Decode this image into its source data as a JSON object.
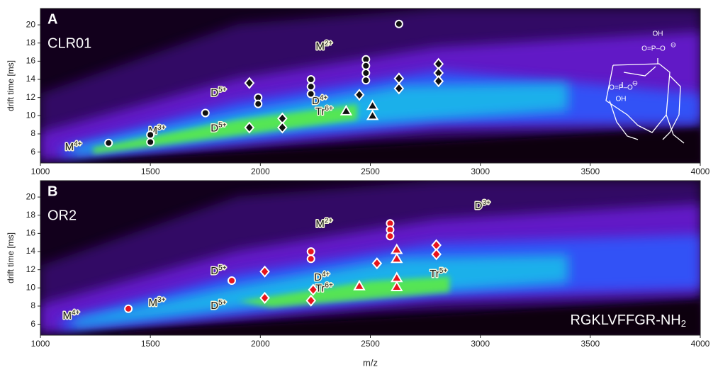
{
  "chart_data": [
    {
      "type": "scatter",
      "panel": "A",
      "title": "CLR01",
      "xlabel": "m/z",
      "ylabel": "drift time [ms]",
      "xlim": [
        1000,
        4000
      ],
      "ylim": [
        4.8,
        21.8
      ],
      "xticks": [
        1000,
        1500,
        2000,
        2500,
        3000,
        3500,
        4000
      ],
      "yticks": [
        6,
        8,
        10,
        12,
        14,
        16,
        18,
        20
      ],
      "marker_fill": "#111111",
      "marker_edge": "#ffffff",
      "series": [
        {
          "marker": "circle",
          "x": [
            1310,
            1500,
            1500,
            1750,
            1990,
            1990,
            2230,
            2230,
            2230,
            2480,
            2480,
            2480,
            2480,
            2630
          ],
          "values": [
            7.0,
            7.9,
            7.1,
            10.3,
            12.0,
            11.3,
            14.0,
            13.2,
            12.4,
            16.2,
            15.5,
            14.7,
            13.9,
            20.1
          ]
        },
        {
          "marker": "diamond",
          "x": [
            1950,
            1950,
            2100,
            2100,
            2450,
            2630,
            2630,
            2810,
            2810,
            2810
          ],
          "values": [
            13.6,
            8.7,
            9.7,
            8.7,
            12.3,
            14.1,
            13.0,
            15.7,
            14.7,
            13.8
          ]
        },
        {
          "marker": "triangle",
          "x": [
            2390,
            2510,
            2510
          ],
          "values": [
            10.5,
            11.1,
            10.0
          ]
        }
      ],
      "annotations": [
        {
          "text": "M",
          "sup": "4+",
          "x": 1150,
          "y": 6.5
        },
        {
          "text": "M",
          "sup": "3+",
          "x": 1530,
          "y": 8.3
        },
        {
          "text": "D",
          "sup": "5+",
          "x": 1810,
          "y": 12.5
        },
        {
          "text": "D",
          "sup": "5+",
          "x": 1810,
          "y": 8.6
        },
        {
          "text": "D",
          "sup": "4+",
          "x": 2270,
          "y": 11.6
        },
        {
          "text": "Tr",
          "sup": "6+",
          "x": 2290,
          "y": 10.4
        },
        {
          "text": "M",
          "sup": "2+",
          "x": 2290,
          "y": 17.6
        }
      ],
      "structure_labels": [
        "OH",
        "O=P–O",
        "⊖",
        "O=P–O",
        "⊖",
        "OH"
      ]
    },
    {
      "type": "scatter",
      "panel": "B",
      "title": "OR2",
      "footer": "RGKLVFFGR-NH",
      "footer_sub": "2",
      "xlabel": "m/z",
      "ylabel": "drift time [ms]",
      "xlim": [
        1000,
        4000
      ],
      "ylim": [
        4.8,
        21.8
      ],
      "xticks": [
        1000,
        1500,
        2000,
        2500,
        3000,
        3500,
        4000
      ],
      "yticks": [
        6,
        8,
        10,
        12,
        14,
        16,
        18,
        20
      ],
      "marker_fill": "#e8141c",
      "marker_edge": "#ffffff",
      "series": [
        {
          "marker": "circle",
          "x": [
            1400,
            1870,
            2230,
            2230,
            2590,
            2590,
            2590
          ],
          "values": [
            7.7,
            10.8,
            14.0,
            13.2,
            17.1,
            16.4,
            15.7
          ]
        },
        {
          "marker": "diamond",
          "x": [
            2020,
            2020,
            2240,
            2230,
            2530,
            2800,
            2800
          ],
          "values": [
            11.8,
            8.9,
            9.8,
            8.6,
            12.7,
            14.7,
            13.7
          ]
        },
        {
          "marker": "triangle",
          "x": [
            2450,
            2620,
            2620,
            2620,
            2620
          ],
          "values": [
            10.2,
            14.2,
            13.2,
            11.1,
            10.1
          ]
        }
      ],
      "annotations": [
        {
          "text": "M",
          "sup": "4+",
          "x": 1140,
          "y": 6.9
        },
        {
          "text": "M",
          "sup": "3+",
          "x": 1530,
          "y": 8.3
        },
        {
          "text": "D",
          "sup": "5+",
          "x": 1810,
          "y": 11.8
        },
        {
          "text": "D",
          "sup": "5+",
          "x": 1810,
          "y": 8.0
        },
        {
          "text": "D",
          "sup": "4+",
          "x": 2280,
          "y": 11.1
        },
        {
          "text": "Tr",
          "sup": "6+",
          "x": 2290,
          "y": 9.9
        },
        {
          "text": "Tr",
          "sup": "5+",
          "x": 2810,
          "y": 11.5
        },
        {
          "text": "M",
          "sup": "2+",
          "x": 2290,
          "y": 17.0
        },
        {
          "text": "D",
          "sup": "3+",
          "x": 3010,
          "y": 19.0
        }
      ]
    }
  ]
}
